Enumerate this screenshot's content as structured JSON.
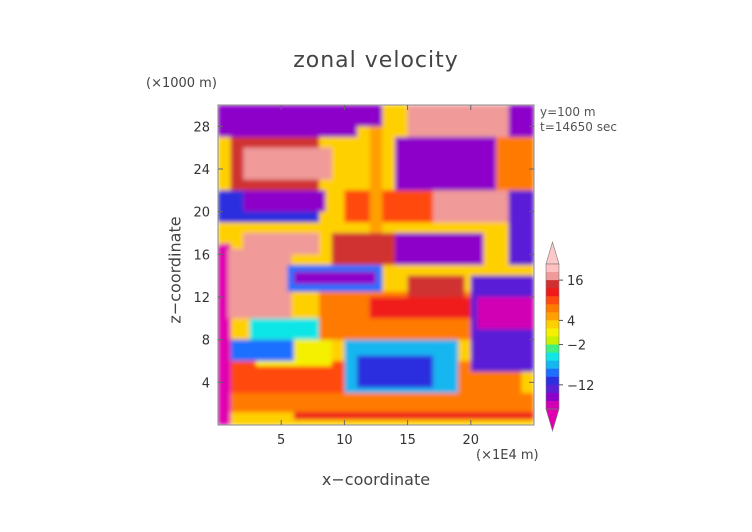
{
  "chart_data": {
    "type": "heatmap",
    "title": "zonal velocity",
    "xlabel": "x−coordinate",
    "ylabel": "z−coordinate",
    "x_unit": "(×1E4 m)",
    "y_unit": "(×1000 m)",
    "annotations": [
      "y=100 m",
      "t=14650 sec"
    ],
    "xlim": [
      0,
      25
    ],
    "ylim": [
      0,
      30
    ],
    "x_ticks": [
      5,
      10,
      15,
      20
    ],
    "y_ticks": [
      4,
      8,
      12,
      16,
      20,
      24,
      28
    ],
    "colorbar": {
      "tick_labels": [
        "16",
        "4",
        "−2",
        "−12"
      ],
      "levels": [
        -24,
        -20,
        -16,
        -12,
        -10,
        -8,
        -6,
        -4,
        -2,
        0,
        2,
        4,
        6,
        8,
        10,
        12,
        16,
        20
      ],
      "colors": [
        "#d100b5",
        "#8d00c9",
        "#5a1fd6",
        "#2b2fdf",
        "#1f6fff",
        "#16b6f0",
        "#10e6e6",
        "#40f080",
        "#c8f000",
        "#f5f000",
        "#ffd000",
        "#ffa000",
        "#ff7a00",
        "#ff4a10",
        "#f01a1a",
        "#d03030",
        "#f09a9a",
        "#ffc0c0"
      ],
      "under_color": "#e000b0",
      "over_color": "#ffc8c8"
    },
    "regions": [
      {
        "x": [
          0,
          25
        ],
        "z": [
          0,
          30
        ],
        "value": 3
      },
      {
        "x": [
          6,
          25
        ],
        "z": [
          0.5,
          2
        ],
        "value": 11
      },
      {
        "x": [
          0,
          25
        ],
        "z": [
          1.2,
          3
        ],
        "value": 6
      },
      {
        "x": [
          0,
          10
        ],
        "z": [
          3,
          6
        ],
        "value": 9
      },
      {
        "x": [
          3,
          9
        ],
        "z": [
          5.5,
          8
        ],
        "value": 0
      },
      {
        "x": [
          10,
          19
        ],
        "z": [
          3,
          8
        ],
        "value": -8
      },
      {
        "x": [
          11,
          17
        ],
        "z": [
          3.5,
          6.5
        ],
        "value": -12
      },
      {
        "x": [
          19,
          24
        ],
        "z": [
          3,
          6
        ],
        "value": 7
      },
      {
        "x": [
          0.5,
          6
        ],
        "z": [
          6,
          8
        ],
        "value": -10
      },
      {
        "x": [
          2.5,
          10
        ],
        "z": [
          8,
          10
        ],
        "value": -6
      },
      {
        "x": [
          8,
          20
        ],
        "z": [
          8,
          12.5
        ],
        "value": 7
      },
      {
        "x": [
          12,
          20
        ],
        "z": [
          10,
          12
        ],
        "value": 10
      },
      {
        "x": [
          20,
          25
        ],
        "z": [
          5,
          14
        ],
        "value": -16
      },
      {
        "x": [
          20.5,
          25
        ],
        "z": [
          9,
          12
        ],
        "value": -22
      },
      {
        "x": [
          0,
          1
        ],
        "z": [
          0,
          17
        ],
        "value": -26
      },
      {
        "x": [
          0.8,
          5.8
        ],
        "z": [
          10,
          16.5
        ],
        "value": 17
      },
      {
        "x": [
          5.5,
          13
        ],
        "z": [
          12.5,
          15
        ],
        "value": -10
      },
      {
        "x": [
          6,
          12.5
        ],
        "z": [
          13.2,
          14.4
        ],
        "value": -18
      },
      {
        "x": [
          15,
          19.5
        ],
        "z": [
          12,
          14
        ],
        "value": 14
      },
      {
        "x": [
          2,
          8
        ],
        "z": [
          16,
          18
        ],
        "value": 17
      },
      {
        "x": [
          9,
          14
        ],
        "z": [
          15,
          18
        ],
        "value": 12
      },
      {
        "x": [
          14,
          21
        ],
        "z": [
          15,
          18
        ],
        "value": -18
      },
      {
        "x": [
          0,
          8
        ],
        "z": [
          19,
          22
        ],
        "value": -12
      },
      {
        "x": [
          2,
          8.5
        ],
        "z": [
          20,
          22
        ],
        "value": -20
      },
      {
        "x": [
          10,
          17
        ],
        "z": [
          19,
          22
        ],
        "value": 8
      },
      {
        "x": [
          17,
          23
        ],
        "z": [
          19,
          22
        ],
        "value": 17
      },
      {
        "x": [
          23,
          25
        ],
        "z": [
          15,
          22
        ],
        "value": -14
      },
      {
        "x": [
          1,
          8
        ],
        "z": [
          22,
          27
        ],
        "value": 12
      },
      {
        "x": [
          2,
          9
        ],
        "z": [
          23,
          26
        ],
        "value": 17
      },
      {
        "x": [
          12,
          13
        ],
        "z": [
          18,
          30
        ],
        "value": 5
      },
      {
        "x": [
          14,
          22
        ],
        "z": [
          22,
          27
        ],
        "value": -20
      },
      {
        "x": [
          22,
          25
        ],
        "z": [
          22,
          27
        ],
        "value": 7
      },
      {
        "x": [
          0,
          11
        ],
        "z": [
          27,
          30
        ],
        "value": -20
      },
      {
        "x": [
          11,
          13
        ],
        "z": [
          28,
          30
        ],
        "value": -20
      },
      {
        "x": [
          15,
          23
        ],
        "z": [
          27,
          30
        ],
        "value": 17
      },
      {
        "x": [
          23,
          25
        ],
        "z": [
          27,
          30
        ],
        "value": -20
      }
    ]
  }
}
